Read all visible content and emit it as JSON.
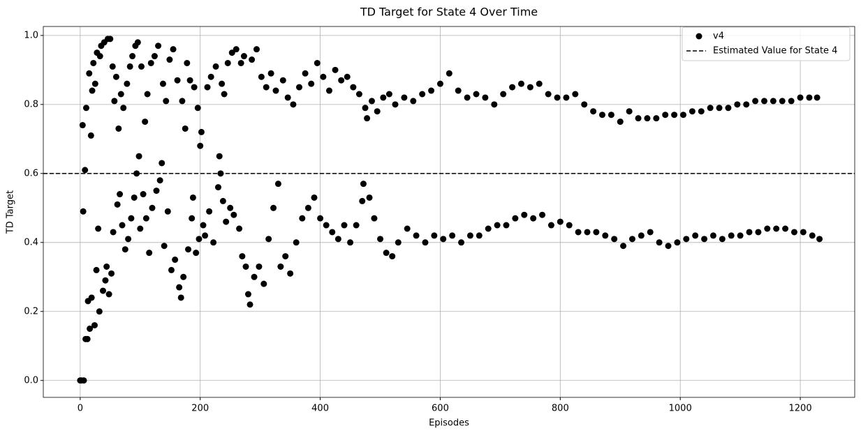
{
  "chart_data": {
    "type": "scatter",
    "title": "TD Target for State 4 Over Time",
    "x_label": "Episodes",
    "y_label": "TD Target",
    "xlim": [
      -61.5,
      1290.7
    ],
    "ylim": [
      -0.049,
      1.026
    ],
    "xticks": [
      0,
      200,
      400,
      600,
      800,
      1000,
      1200
    ],
    "yticks": [
      {
        "value": 0,
        "label": "0.0"
      },
      0.2,
      0.4,
      0.6,
      0.8,
      {
        "value": 1,
        "label": "1.0"
      }
    ],
    "grid": true,
    "legend": "upper right",
    "x": [
      0,
      2,
      4,
      5,
      6,
      8,
      9,
      10,
      12,
      13,
      15,
      16,
      18,
      19,
      20,
      22,
      24,
      25,
      27,
      28,
      30,
      32,
      33,
      35,
      38,
      40,
      42,
      44,
      46,
      48,
      50,
      52,
      54,
      55,
      57,
      60,
      62,
      64,
      66,
      68,
      70,
      72,
      75,
      78,
      80,
      83,
      85,
      87,
      90,
      92,
      94,
      96,
      98,
      100,
      102,
      105,
      108,
      110,
      112,
      115,
      118,
      120,
      124,
      127,
      130,
      133,
      136,
      138,
      140,
      143,
      146,
      149,
      152,
      155,
      158,
      162,
      165,
      168,
      170,
      172,
      175,
      178,
      180,
      183,
      186,
      188,
      190,
      193,
      196,
      198,
      200,
      202,
      205,
      208,
      212,
      215,
      218,
      222,
      226,
      230,
      232,
      234,
      236,
      238,
      240,
      243,
      246,
      250,
      253,
      256,
      260,
      265,
      268,
      270,
      273,
      276,
      280,
      283,
      286,
      290,
      294,
      298,
      302,
      306,
      310,
      314,
      318,
      322,
      326,
      330,
      334,
      338,
      342,
      346,
      350,
      355,
      360,
      365,
      370,
      375,
      380,
      385,
      390,
      395,
      400,
      405,
      410,
      415,
      420,
      425,
      430,
      435,
      440,
      445,
      450,
      455,
      460,
      465,
      470,
      472,
      475,
      478,
      482,
      486,
      490,
      495,
      500,
      505,
      510,
      515,
      520,
      525,
      530,
      540,
      545,
      555,
      560,
      570,
      575,
      585,
      590,
      600,
      605,
      615,
      620,
      630,
      635,
      645,
      650,
      660,
      665,
      675,
      680,
      690,
      695,
      705,
      710,
      720,
      725,
      735,
      740,
      750,
      755,
      765,
      770,
      780,
      785,
      795,
      800,
      810,
      815,
      825,
      830,
      840,
      845,
      855,
      860,
      870,
      875,
      885,
      890,
      900,
      905,
      915,
      920,
      930,
      935,
      945,
      950,
      960,
      965,
      975,
      980,
      990,
      995,
      1005,
      1010,
      1020,
      1025,
      1035,
      1040,
      1050,
      1055,
      1065,
      1070,
      1080,
      1085,
      1095,
      1100,
      1110,
      1115,
      1125,
      1130,
      1140,
      1145,
      1155,
      1160,
      1170,
      1175,
      1185,
      1190,
      1200,
      1205,
      1215,
      1220,
      1228,
      1232
    ],
    "series": [
      {
        "name": "v4",
        "color": "#000000",
        "values": [
          0,
          0,
          0.74,
          0.49,
          0,
          0.61,
          0.12,
          0.79,
          0.12,
          0.23,
          0.89,
          0.15,
          0.71,
          0.24,
          0.84,
          0.92,
          0.16,
          0.86,
          0.32,
          0.95,
          0.44,
          0.2,
          0.94,
          0.97,
          0.26,
          0.98,
          0.29,
          0.33,
          0.99,
          0.25,
          0.99,
          0.31,
          0.91,
          0.43,
          0.81,
          0.88,
          0.51,
          0.73,
          0.54,
          0.83,
          0.45,
          0.79,
          0.38,
          0.86,
          0.41,
          0.91,
          0.47,
          0.94,
          0.53,
          0.97,
          0.6,
          0.98,
          0.65,
          0.44,
          0.91,
          0.54,
          0.75,
          0.47,
          0.83,
          0.37,
          0.92,
          0.5,
          0.94,
          0.55,
          0.97,
          0.58,
          0.63,
          0.86,
          0.39,
          0.81,
          0.49,
          0.93,
          0.32,
          0.96,
          0.35,
          0.87,
          0.27,
          0.24,
          0.81,
          0.3,
          0.73,
          0.92,
          0.38,
          0.87,
          0.47,
          0.53,
          0.85,
          0.37,
          0.79,
          0.41,
          0.68,
          0.72,
          0.45,
          0.42,
          0.85,
          0.49,
          0.88,
          0.4,
          0.91,
          0.56,
          0.65,
          0.6,
          0.86,
          0.52,
          0.83,
          0.46,
          0.92,
          0.5,
          0.95,
          0.48,
          0.96,
          0.44,
          0.92,
          0.36,
          0.94,
          0.33,
          0.25,
          0.22,
          0.93,
          0.3,
          0.96,
          0.33,
          0.88,
          0.28,
          0.85,
          0.41,
          0.89,
          0.5,
          0.84,
          0.57,
          0.33,
          0.87,
          0.36,
          0.82,
          0.31,
          0.8,
          0.4,
          0.85,
          0.47,
          0.89,
          0.5,
          0.86,
          0.53,
          0.92,
          0.47,
          0.88,
          0.45,
          0.84,
          0.43,
          0.9,
          0.41,
          0.87,
          0.45,
          0.88,
          0.4,
          0.85,
          0.45,
          0.83,
          0.52,
          0.57,
          0.79,
          0.76,
          0.53,
          0.81,
          0.47,
          0.78,
          0.41,
          0.82,
          0.37,
          0.83,
          0.36,
          0.8,
          0.4,
          0.82,
          0.44,
          0.81,
          0.42,
          0.83,
          0.4,
          0.84,
          0.42,
          0.86,
          0.41,
          0.89,
          0.42,
          0.84,
          0.4,
          0.82,
          0.42,
          0.83,
          0.42,
          0.82,
          0.44,
          0.8,
          0.45,
          0.83,
          0.45,
          0.85,
          0.47,
          0.86,
          0.48,
          0.85,
          0.47,
          0.86,
          0.48,
          0.83,
          0.45,
          0.82,
          0.46,
          0.82,
          0.45,
          0.83,
          0.43,
          0.8,
          0.43,
          0.78,
          0.43,
          0.77,
          0.42,
          0.77,
          0.41,
          0.75,
          0.39,
          0.78,
          0.41,
          0.76,
          0.42,
          0.76,
          0.43,
          0.76,
          0.4,
          0.77,
          0.39,
          0.77,
          0.4,
          0.77,
          0.41,
          0.78,
          0.42,
          0.78,
          0.41,
          0.79,
          0.42,
          0.79,
          0.41,
          0.79,
          0.42,
          0.8,
          0.42,
          0.8,
          0.43,
          0.81,
          0.43,
          0.81,
          0.44,
          0.81,
          0.44,
          0.81,
          0.44,
          0.81,
          0.43,
          0.82,
          0.43,
          0.82,
          0.42,
          0.82,
          0.41
        ]
      }
    ],
    "reference_line": {
      "name": "Estimated Value for State 4",
      "value": 0.6,
      "color": "#000000"
    }
  }
}
